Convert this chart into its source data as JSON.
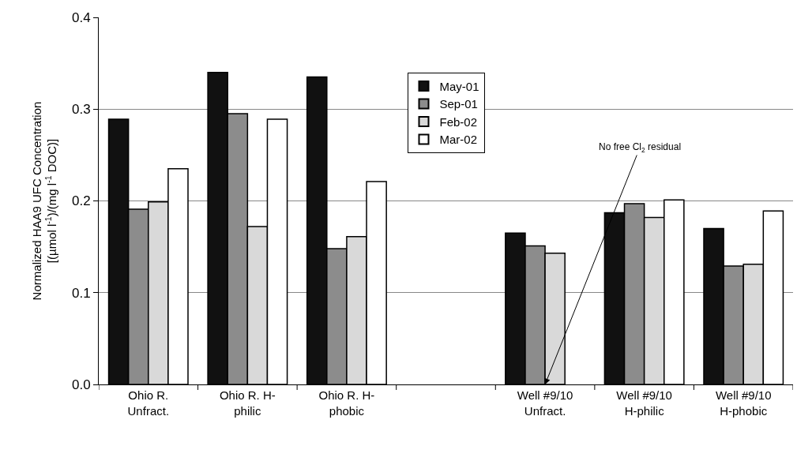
{
  "chart_data": {
    "type": "bar",
    "ylabel": "Normalized HAA9 UFC Concentration\n[(µmol l$^{-1}$)/(mg l$^{-1}$ DOC)]",
    "categories": [
      "Ohio R.\nUnfract.",
      "Ohio R. H-\nphilic",
      "Ohio R. H-\nphobic",
      null,
      "Well #9/10\nUnfract.",
      "Well #9/10\nH-philic",
      "Well #9/10\nH-phobic"
    ],
    "series": [
      {
        "name": "May-01",
        "color": "#111111",
        "values": [
          0.289,
          0.34,
          0.335,
          null,
          0.165,
          0.187,
          0.17
        ]
      },
      {
        "name": "Sep-01",
        "color": "#8c8c8c",
        "values": [
          0.191,
          0.295,
          0.148,
          null,
          0.151,
          0.197,
          0.129
        ]
      },
      {
        "name": "Feb-02",
        "color": "#d9d9d9",
        "values": [
          0.199,
          0.172,
          0.161,
          null,
          0.143,
          0.182,
          0.131
        ]
      },
      {
        "name": "Mar-02",
        "color": "#ffffff",
        "values": [
          0.235,
          0.289,
          0.221,
          null,
          null,
          0.201,
          0.189
        ]
      }
    ],
    "ylim": [
      0,
      0.4
    ],
    "yticks": [
      {
        "value": 0,
        "label": "0.0"
      },
      0.1,
      0.2,
      0.3,
      0.4
    ],
    "grid": "y",
    "legend": "top",
    "annotations": [
      {
        "text": "No free Cl$_{2}$ residual",
        "x": "Well #9/10\nUnfract.",
        "y": 0
      }
    ]
  }
}
